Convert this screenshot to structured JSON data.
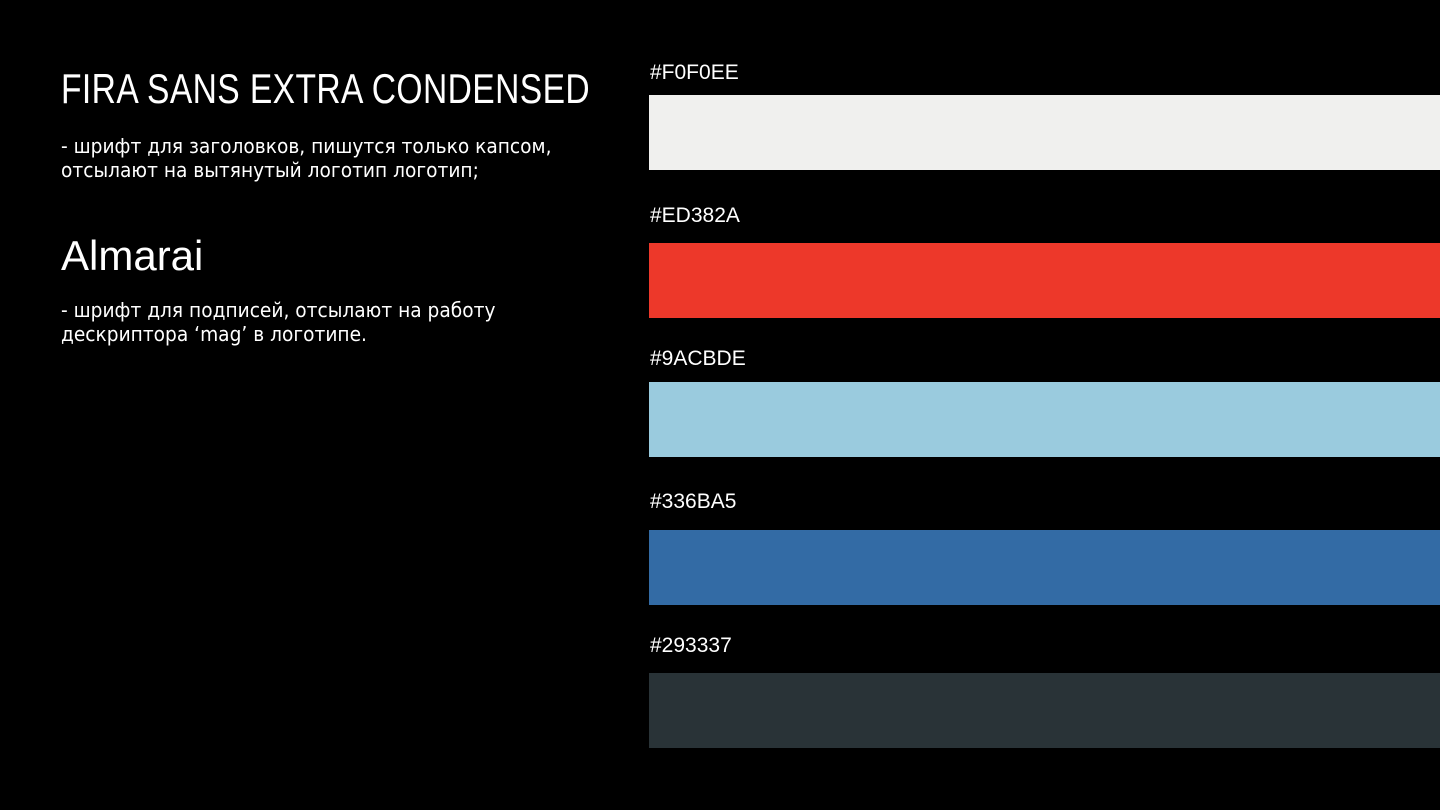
{
  "fonts": [
    {
      "name": "FIRA SANS EXTRA CONDENSED",
      "description": "- шрифт для заголовков, пишутся только капсом,\nотсылают на вытянутый логотип логотип;"
    },
    {
      "name": "Almarai",
      "description": "- шрифт для подписей, отсылают на работу\nдескриптора ‘mag’ в логотипе."
    }
  ],
  "palette": [
    {
      "label": "#F0F0EE",
      "color": "#F0F0EE"
    },
    {
      "label": "#ED382A",
      "color": "#ED382A"
    },
    {
      "label": "#9ACBDE",
      "color": "#9ACBDE"
    },
    {
      "label": "#336BA5",
      "color": "#336BA5"
    },
    {
      "label": "#293337",
      "color": "#293337"
    }
  ]
}
